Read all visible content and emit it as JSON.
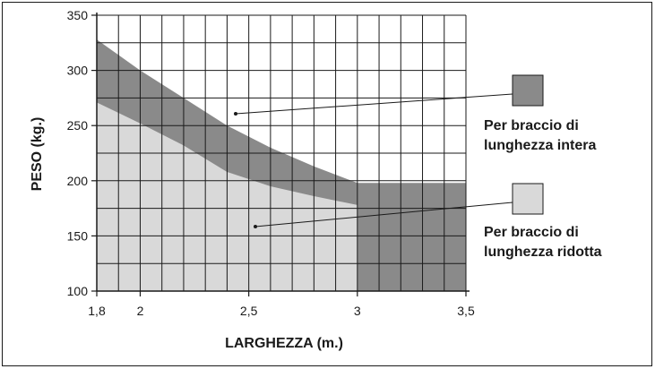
{
  "chart_data": {
    "type": "area",
    "xlabel": "LARGHEZZA (m.)",
    "ylabel": "PESO (kg.)",
    "xlim": [
      1.8,
      3.5
    ],
    "ylim": [
      100,
      350
    ],
    "x_ticks": [
      "1,8",
      "2",
      "2,5",
      "3",
      "3,5"
    ],
    "x_tick_values": [
      1.8,
      2.0,
      2.5,
      3.0,
      3.5
    ],
    "y_ticks": [
      "100",
      "150",
      "200",
      "250",
      "300",
      "350"
    ],
    "y_tick_values": [
      100,
      150,
      200,
      250,
      300,
      350
    ],
    "grid": true,
    "x_grid_step": 0.1,
    "y_grid_step": 25,
    "series": [
      {
        "name": "Per braccio di lunghezza intera",
        "line1": "Per braccio di",
        "line2": "lunghezza intera",
        "color": "#8a8a8a",
        "x": [
          1.8,
          2.0,
          2.2,
          2.4,
          2.6,
          2.8,
          3.0,
          3.2,
          3.5
        ],
        "y": [
          328,
          300,
          275,
          250,
          230,
          213,
          198,
          198,
          198
        ]
      },
      {
        "name": "Per braccio di lunghezza ridotta",
        "line1": "Per braccio di",
        "line2": "lunghezza ridotta",
        "color": "#d9d9d9",
        "x": [
          1.8,
          2.0,
          2.2,
          2.4,
          2.6,
          2.8,
          3.0
        ],
        "y": [
          271,
          252,
          232,
          208,
          195,
          186,
          178
        ]
      }
    ],
    "legend_placement": "right"
  }
}
